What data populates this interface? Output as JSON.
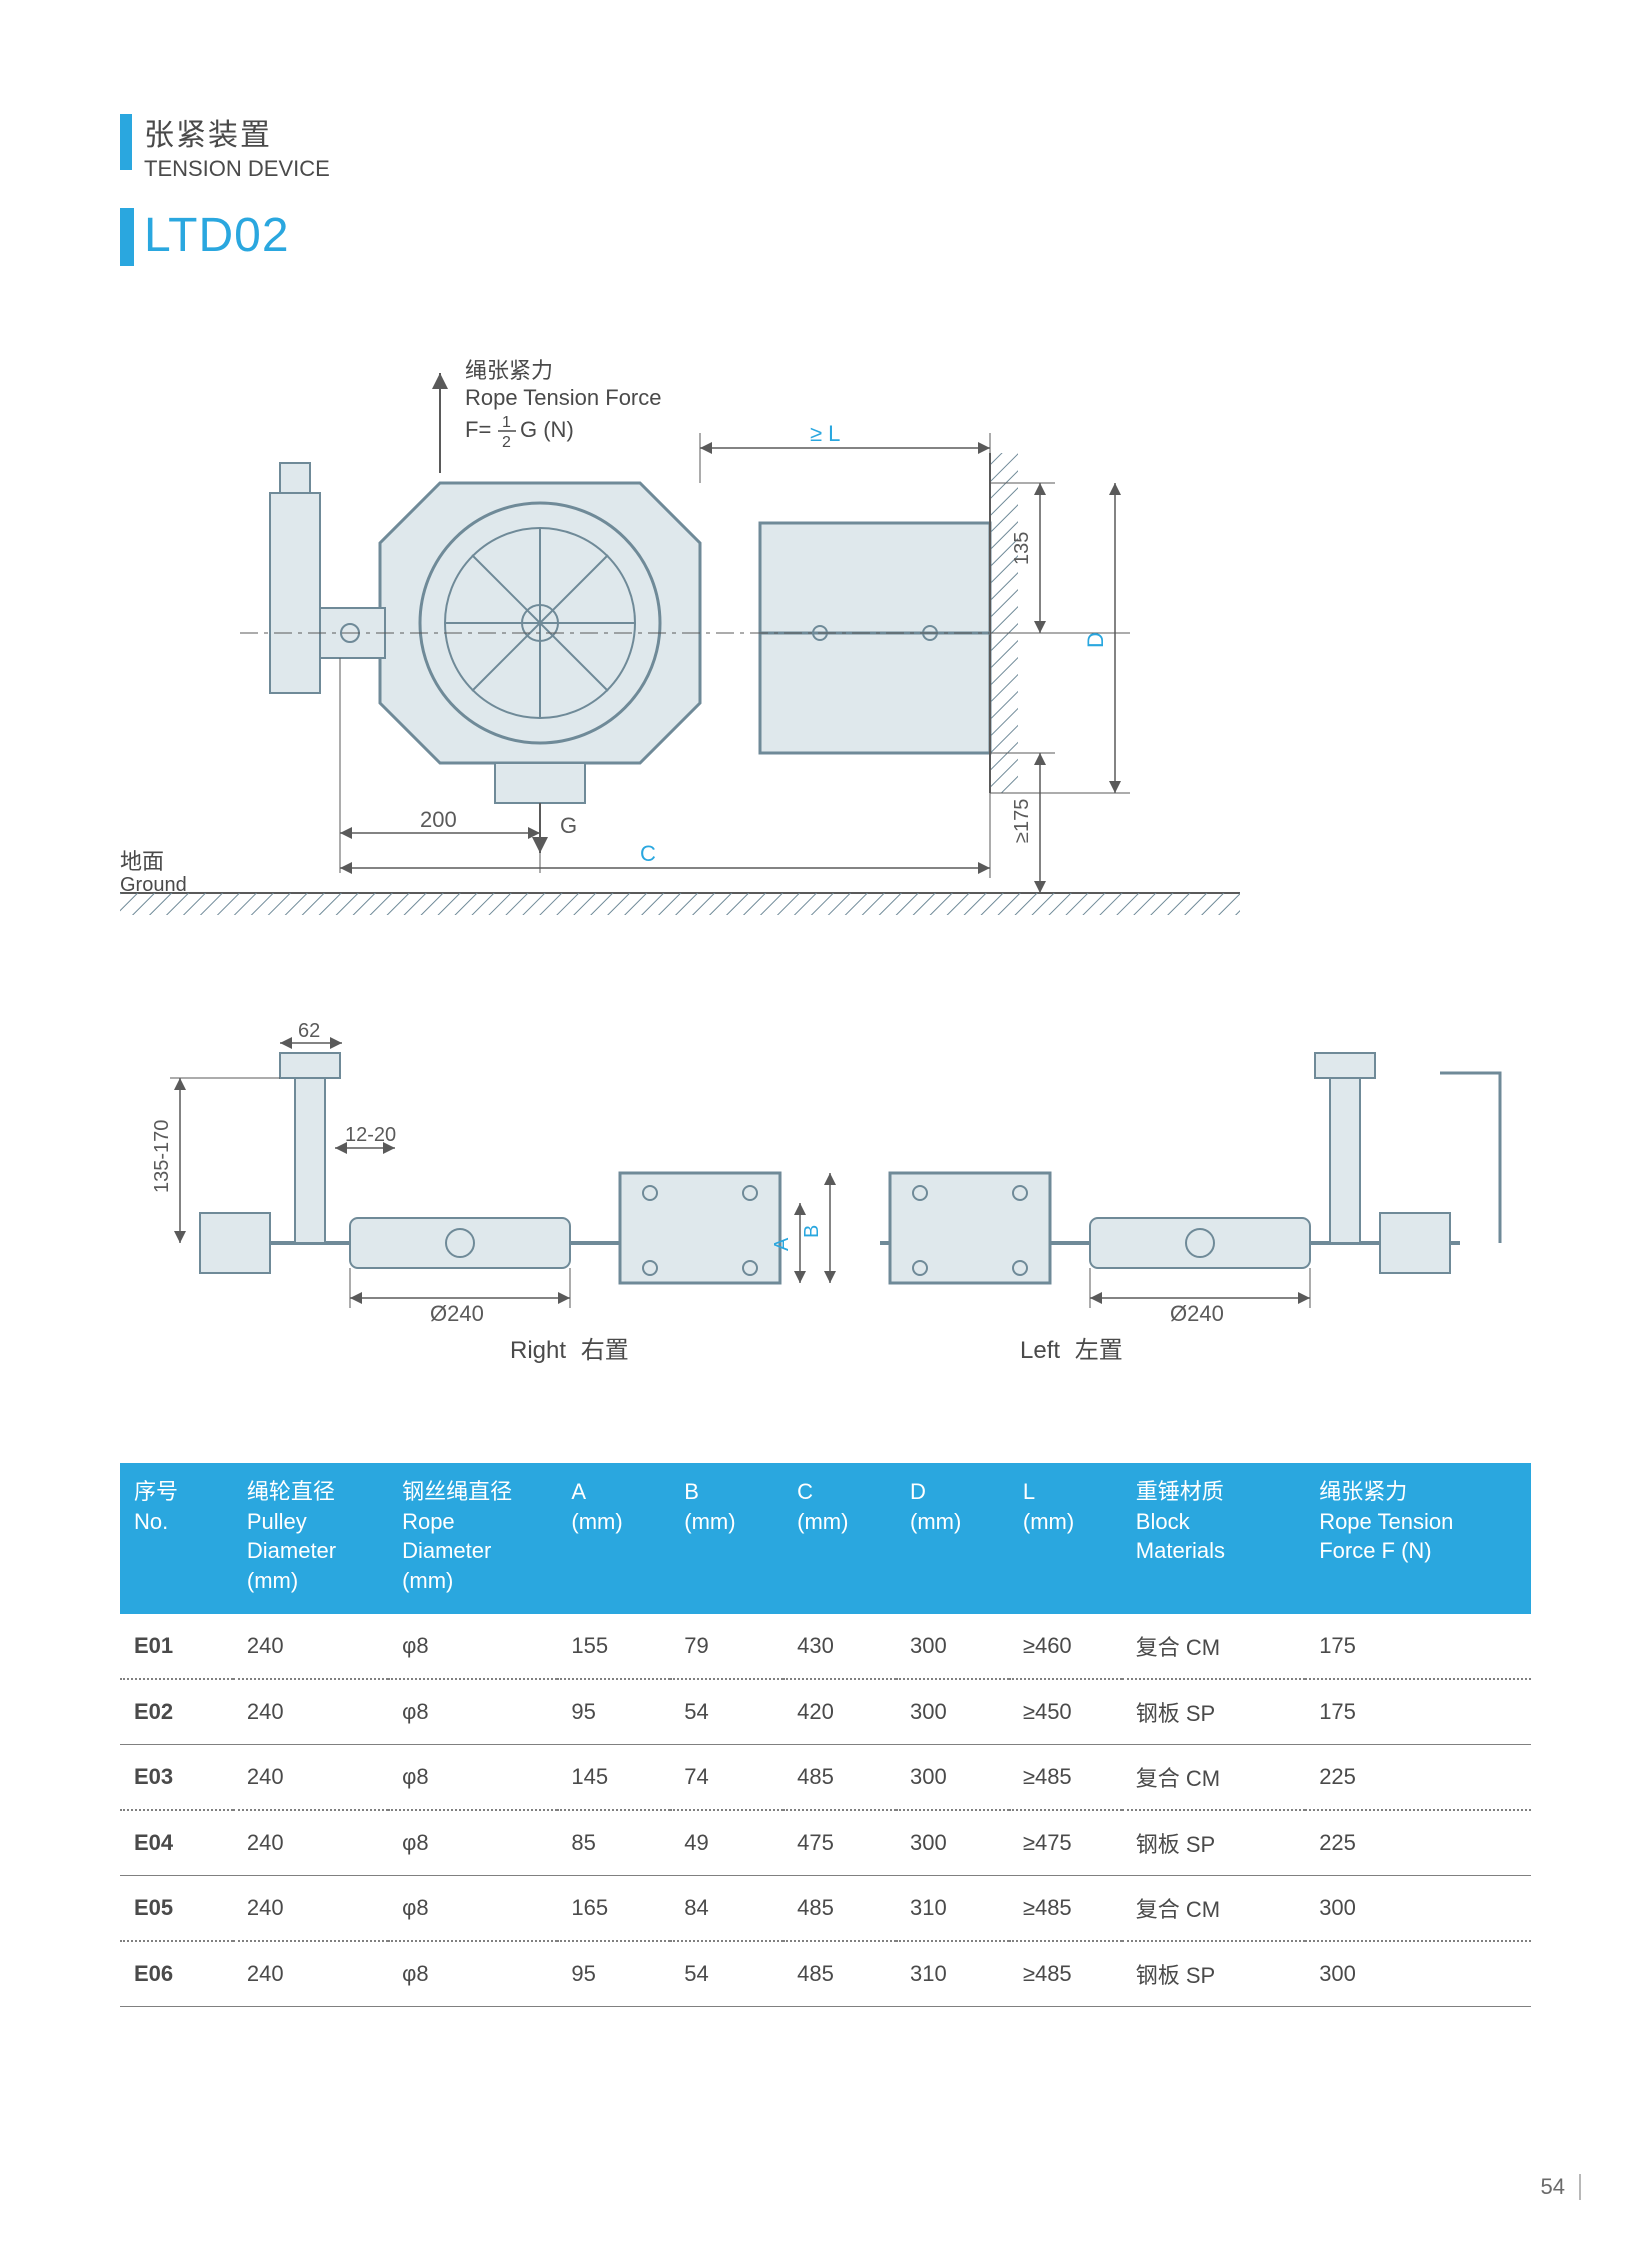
{
  "colors": {
    "accent": "#2aa7df",
    "text": "#4a4a4a",
    "header_bg": "#2aa7df",
    "header_fg": "#ffffff",
    "row_solid": "#808080",
    "row_dotted": "#808080",
    "diagram_stroke": "#6f8a98",
    "diagram_fill": "#dfe8ec",
    "dim_text": "#5a5a5a"
  },
  "title": {
    "cn": "张紧装置",
    "en": "TENSION DEVICE",
    "model": "LTD02"
  },
  "diagram_main": {
    "rope_tension_cn": "绳张紧力",
    "rope_tension_en": "Rope Tension Force",
    "formula_prefix": "F=",
    "formula_frac_top": "1",
    "formula_frac_bot": "2",
    "formula_suffix": " G (N)",
    "dim_L_label": "≥ L",
    "dim_200": "200",
    "dim_C": "C",
    "dim_135": "135",
    "dim_D": "D",
    "dim_175": "≥175",
    "label_G": "G",
    "ground_cn": "地面",
    "ground_en": "Ground"
  },
  "diagram_bottom": {
    "dim_62": "62",
    "dim_135_170": "135-170",
    "dim_12_20": "12-20",
    "dim_phi240": "Ø240",
    "dim_A": "A",
    "dim_B": "B",
    "right_label_en": "Right",
    "right_label_cn": "右置",
    "left_label_en": "Left",
    "left_label_cn": "左置"
  },
  "table": {
    "columns": [
      {
        "cn": "序号",
        "en": "No."
      },
      {
        "cn": "绳轮直径",
        "en": "Pulley",
        "en2": "Diameter",
        "unit": "(mm)"
      },
      {
        "cn": "钢丝绳直径",
        "en": "Rope",
        "en2": "Diameter",
        "unit": "(mm)"
      },
      {
        "cn": "A",
        "en": "(mm)"
      },
      {
        "cn": "B",
        "en": "(mm)"
      },
      {
        "cn": "C",
        "en": "(mm)"
      },
      {
        "cn": "D",
        "en": "(mm)"
      },
      {
        "cn": "L",
        "en": "(mm)"
      },
      {
        "cn": "重锤材质",
        "en": "Block",
        "en2": "Materials"
      },
      {
        "cn": "绳张紧力",
        "en": "Rope Tension",
        "en2": "Force F (N)"
      }
    ],
    "col_widths_pct": [
      8,
      11,
      12,
      8,
      8,
      8,
      8,
      8,
      13,
      16
    ],
    "rows": [
      {
        "sep": "dash",
        "cells": [
          "E01",
          "240",
          "φ8",
          "155",
          "79",
          "430",
          "300",
          "≥460",
          "复合 CM",
          "175"
        ]
      },
      {
        "sep": "solid",
        "cells": [
          "E02",
          "240",
          "φ8",
          "95",
          "54",
          "420",
          "300",
          "≥450",
          "钢板 SP",
          "175"
        ]
      },
      {
        "sep": "dash",
        "cells": [
          "E03",
          "240",
          "φ8",
          "145",
          "74",
          "485",
          "300",
          "≥485",
          "复合 CM",
          "225"
        ]
      },
      {
        "sep": "solid",
        "cells": [
          "E04",
          "240",
          "φ8",
          "85",
          "49",
          "475",
          "300",
          "≥475",
          "钢板 SP",
          "225"
        ]
      },
      {
        "sep": "dash",
        "cells": [
          "E05",
          "240",
          "φ8",
          "165",
          "84",
          "485",
          "310",
          "≥485",
          "复合 CM",
          "300"
        ]
      },
      {
        "sep": "solid",
        "cells": [
          "E06",
          "240",
          "φ8",
          "95",
          "54",
          "485",
          "310",
          "≥485",
          "钢板 SP",
          "300"
        ]
      }
    ]
  },
  "page_number": "54"
}
